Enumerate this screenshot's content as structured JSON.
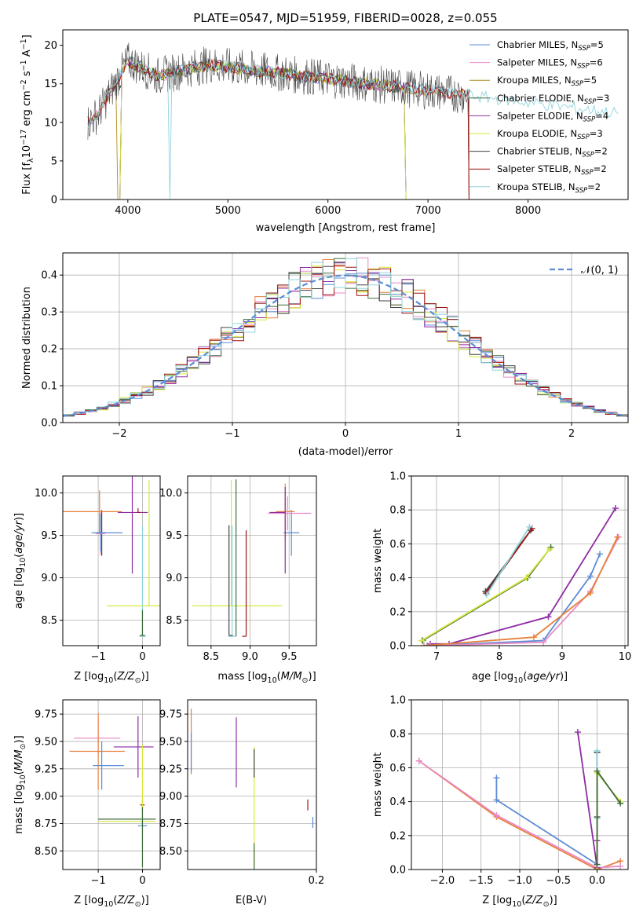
{
  "chart_data": [
    {
      "id": "spectrum",
      "type": "line",
      "title": "PLATE=0547, MJD=51959, FIBERID=0028, z=0.055",
      "xlabel": "wavelength [Angstrom, rest frame]",
      "ylabel": "Flux [f_λ10^-17 erg cm^-2 s^-1 A^-1]",
      "xlim": [
        3350,
        9000
      ],
      "ylim": [
        0,
        22
      ],
      "xticks": [
        4000,
        5000,
        6000,
        7000,
        8000
      ],
      "yticks": [
        0,
        5,
        10,
        15,
        20
      ],
      "grid": false,
      "legend_position": "top-right",
      "series": [
        {
          "name": "Chabrier MILES, N_SSP=5",
          "color": "#5b8bd6",
          "xrange": [
            3600,
            7410
          ]
        },
        {
          "name": "Salpeter MILES, N_SSP=6",
          "color": "#e88bc5",
          "xrange": [
            3600,
            7410
          ]
        },
        {
          "name": "Kroupa MILES, N_SSP=5",
          "color": "#b08a1f",
          "xrange": [
            3600,
            7410
          ]
        },
        {
          "name": "Chabrier ELODIE, N_SSP=3",
          "color": "#3d6b3d",
          "xrange": [
            3900,
            6800
          ]
        },
        {
          "name": "Salpeter ELODIE, N_SSP=4",
          "color": "#8e2ba3",
          "xrange": [
            3900,
            6800
          ]
        },
        {
          "name": "Kroupa ELODIE, N_SSP=3",
          "color": "#d6e83a",
          "xrange": [
            3900,
            6800
          ]
        },
        {
          "name": "Chabrier STELIB, N_SSP=2",
          "color": "#444444",
          "xrange": [
            3600,
            7410
          ]
        },
        {
          "name": "Salpeter STELIB, N_SSP=2",
          "color": "#a01515",
          "xrange": [
            3600,
            7410
          ]
        },
        {
          "name": "Kroupa STELIB, N_SSP=2",
          "color": "#8fd4dc",
          "xrange": [
            3600,
            8900
          ]
        }
      ]
    },
    {
      "id": "residuals",
      "type": "line",
      "xlabel": "(data-model)/error",
      "ylabel": "Normed distribution",
      "xlim": [
        -2.5,
        2.5
      ],
      "ylim": [
        0,
        0.46
      ],
      "xticks": [
        -2,
        -1,
        0,
        1,
        2
      ],
      "xtick_labels": [
        "−2",
        "−1",
        "0",
        "1",
        "2"
      ],
      "yticks": [
        0.0,
        0.1,
        0.2,
        0.3,
        0.4
      ],
      "ytick_labels": [
        "0.0",
        "0.1",
        "0.2",
        "0.3",
        "0.4"
      ],
      "grid": true,
      "legend_position": "top-right",
      "legend_label": "𝒩(0, 1)",
      "reference_curve": {
        "type": "gaussian",
        "mean": 0,
        "sigma": 1,
        "color": "#5b8bd6"
      },
      "bin_width": 0.1,
      "bin_start": -2.5,
      "histogram_colors": [
        "#5b8bd6",
        "#e88bc5",
        "#e8803a",
        "#3d6b3d",
        "#8e2ba3",
        "#d6e83a",
        "#444444",
        "#a01515",
        "#8fd4dc"
      ]
    },
    {
      "id": "age-vs-Z",
      "type": "scatter",
      "xlabel": "Z [log10(Z/Z⊙)]",
      "ylabel": "age [log10(age/yr)]",
      "xlim": [
        -1.8,
        0.4
      ],
      "ylim": [
        8.2,
        10.2
      ],
      "xticks": [
        -1,
        0
      ],
      "xtick_labels": [
        "−1",
        "0"
      ],
      "yticks": [
        8.5,
        9.0,
        9.5,
        10.0
      ],
      "ytick_labels": [
        "8.5",
        "9.0",
        "9.5",
        "10.0"
      ],
      "grid": true,
      "points": [
        {
          "x": -0.92,
          "y": 9.53,
          "xerr": [
            0.12,
            0.12
          ],
          "yerr": [
            0.27,
            0.27
          ],
          "color": "#444444"
        },
        {
          "x": -0.95,
          "y": 9.52,
          "xerr": [
            0.11,
            0.11
          ],
          "yerr": [
            0.25,
            0.25
          ],
          "color": "#e88bc5"
        },
        {
          "x": -0.97,
          "y": 9.78,
          "xerr": [
            0.85,
            0.5
          ],
          "yerr": [
            0.25,
            0.25
          ],
          "color": "#e8803a"
        },
        {
          "x": -0.95,
          "y": 9.53,
          "xerr": [
            0.2,
            0.5
          ],
          "yerr": [
            0.22,
            0.22
          ],
          "color": "#5b8bd6"
        },
        {
          "x": -0.23,
          "y": 9.77,
          "xerr": [
            0.33,
            0.35
          ],
          "yerr": [
            0.72,
            0.72
          ],
          "color": "#8e2ba3"
        },
        {
          "x": -0.1,
          "y": 9.77,
          "xerr": [
            0.0,
            0.05
          ],
          "yerr": [
            0.0,
            0.05
          ],
          "color": "#a01515"
        },
        {
          "x": 0.0,
          "y": 8.31,
          "xerr": [
            0.08,
            0.08
          ],
          "yerr": [
            0.0,
            1.3
          ],
          "color": "#8fd4dc"
        },
        {
          "x": 0.0,
          "y": 8.32,
          "xerr": [
            0.06,
            0.06
          ],
          "yerr": [
            0.0,
            0.3
          ],
          "color": "#3d6b3d"
        },
        {
          "x": 0.15,
          "y": 8.67,
          "xerr": [
            0.95,
            0.35
          ],
          "yerr": [
            0.0,
            1.48
          ],
          "color": "#d6e83a"
        }
      ]
    },
    {
      "id": "age-vs-mass",
      "type": "scatter",
      "xlabel": "mass [log10(M/M⊙)]",
      "xlim": [
        8.2,
        9.85
      ],
      "ylim": [
        8.2,
        10.2
      ],
      "xticks": [
        8.5,
        9.0,
        9.5
      ],
      "xtick_labels": [
        "8.5",
        "9.0",
        "9.5"
      ],
      "yticks": [
        8.5,
        9.0,
        9.5,
        10.0
      ],
      "ytick_labels": [
        "8.5",
        "9.0",
        "9.5",
        "10.0"
      ],
      "grid": true,
      "points": [
        {
          "x": 9.53,
          "y": 9.53,
          "xerr": [
            0.1,
            0.1
          ],
          "yerr": [
            0.27,
            0.27
          ],
          "color": "#5b8bd6"
        },
        {
          "x": 9.45,
          "y": 9.78,
          "xerr": [
            0.12,
            0.12
          ],
          "yerr": [
            0.33,
            0.33
          ],
          "color": "#e8803a"
        },
        {
          "x": 9.48,
          "y": 9.76,
          "xerr": [
            0.25,
            0.3
          ],
          "yerr": [
            0.2,
            0.2
          ],
          "color": "#e88bc5"
        },
        {
          "x": 9.45,
          "y": 9.77,
          "xerr": [
            0.2,
            0.0
          ],
          "yerr": [
            0.72,
            0.3
          ],
          "color": "#8e2ba3"
        },
        {
          "x": 8.76,
          "y": 8.67,
          "xerr": [
            0.5,
            0.65
          ],
          "yerr": [
            0.0,
            1.48
          ],
          "color": "#d6e83a"
        },
        {
          "x": 8.77,
          "y": 8.31,
          "xerr": [
            0.05,
            0.05
          ],
          "yerr": [
            0.0,
            1.3
          ],
          "color": "#8fd4dc"
        },
        {
          "x": 8.73,
          "y": 8.32,
          "xerr": [
            0.0,
            0.05
          ],
          "yerr": [
            0.0,
            1.3
          ],
          "color": "#444444"
        },
        {
          "x": 8.95,
          "y": 8.31,
          "xerr": [
            0.05,
            0.0
          ],
          "yerr": [
            0.0,
            1.25
          ],
          "color": "#a01515"
        },
        {
          "x": 8.82,
          "y": 8.31,
          "xerr": [
            0.0,
            0.0
          ],
          "yerr": [
            0.0,
            1.85
          ],
          "color": "#3d6b3d"
        }
      ]
    },
    {
      "id": "weight-vs-age",
      "type": "line",
      "xlabel": "age [log10(age/yr)]",
      "ylabel": "mass weight",
      "xlim": [
        6.6,
        10.05
      ],
      "ylim": [
        0,
        1
      ],
      "xticks": [
        7,
        8,
        9,
        10
      ],
      "xtick_labels": [
        "7",
        "8",
        "9",
        "10"
      ],
      "yticks": [
        0.0,
        0.2,
        0.4,
        0.6,
        0.8,
        1.0
      ],
      "ytick_labels": [
        "0.0",
        "0.2",
        "0.4",
        "0.6",
        "0.8",
        "1.0"
      ],
      "grid": true,
      "series": [
        {
          "color": "#444444",
          "x": [
            7.78,
            8.5
          ],
          "y": [
            0.32,
            0.68
          ]
        },
        {
          "color": "#a01515",
          "x": [
            7.79,
            8.52
          ],
          "y": [
            0.31,
            0.69
          ]
        },
        {
          "color": "#8fd4dc",
          "x": [
            7.8,
            8.48
          ],
          "y": [
            0.3,
            0.7
          ]
        },
        {
          "color": "#3d6b3d",
          "x": [
            6.78,
            8.45,
            8.82
          ],
          "y": [
            0.03,
            0.4,
            0.58
          ]
        },
        {
          "color": "#d6e83a",
          "x": [
            6.76,
            8.43,
            8.8
          ],
          "y": [
            0.03,
            0.4,
            0.57
          ]
        },
        {
          "color": "#8e2ba3",
          "x": [
            6.9,
            7.2,
            8.78,
            9.85
          ],
          "y": [
            0.01,
            0.01,
            0.17,
            0.81
          ]
        },
        {
          "color": "#5b8bd6",
          "x": [
            6.85,
            8.7,
            9.45,
            9.6
          ],
          "y": [
            0.0,
            0.03,
            0.41,
            0.54
          ]
        },
        {
          "color": "#e88bc5",
          "x": [
            6.9,
            8.7,
            9.45,
            9.9
          ],
          "y": [
            0.0,
            0.02,
            0.32,
            0.64
          ]
        },
        {
          "color": "#e8803a",
          "x": [
            6.8,
            8.55,
            9.45,
            9.88
          ],
          "y": [
            0.0,
            0.05,
            0.31,
            0.64
          ]
        }
      ]
    },
    {
      "id": "mass-vs-Z",
      "type": "scatter",
      "xlabel": "Z [log10(Z/Z⊙)]",
      "ylabel": "mass [log10(M/M⊙)]",
      "xlim": [
        -1.8,
        0.4
      ],
      "ylim": [
        8.33,
        9.88
      ],
      "xticks": [
        -1,
        0
      ],
      "xtick_labels": [
        "−1",
        "0"
      ],
      "yticks": [
        8.5,
        8.75,
        9.0,
        9.25,
        9.5,
        9.75
      ],
      "ytick_labels": [
        "8.50",
        "8.75",
        "9.00",
        "9.25",
        "9.50",
        "9.75"
      ],
      "grid": true,
      "points": [
        {
          "x": -1.0,
          "y": 9.53,
          "xerr": [
            0.55,
            0.5
          ],
          "yerr": [
            0.17,
            0.17
          ],
          "color": "#e88bc5"
        },
        {
          "x": -1.0,
          "y": 9.41,
          "xerr": [
            0.65,
            0.6
          ],
          "yerr": [
            0.35,
            0.35
          ],
          "color": "#e8803a"
        },
        {
          "x": -0.92,
          "y": 9.28,
          "xerr": [
            0.2,
            0.5
          ],
          "yerr": [
            0.22,
            0.22
          ],
          "color": "#5b8bd6"
        },
        {
          "x": -0.1,
          "y": 9.45,
          "xerr": [
            0.55,
            0.35
          ],
          "yerr": [
            0.28,
            0.28
          ],
          "color": "#8e2ba3"
        },
        {
          "x": 0.0,
          "y": 8.92,
          "xerr": [
            0.05,
            0.05
          ],
          "yerr": [
            0.05,
            0.05
          ],
          "color": "#a01515"
        },
        {
          "x": 0.0,
          "y": 8.73,
          "xerr": [
            0.1,
            0.1
          ],
          "yerr": [
            0.0,
            0.05
          ],
          "color": "#5b8bd6"
        },
        {
          "x": 0.0,
          "y": 8.79,
          "xerr": [
            1.0,
            0.3
          ],
          "yerr": [
            0.0,
            0.0
          ],
          "color": "#3d6b3d"
        },
        {
          "x": 0.0,
          "y": 8.77,
          "xerr": [
            1.0,
            0.3
          ],
          "yerr": [
            0.25,
            0.7
          ],
          "color": "#d6e83a"
        },
        {
          "x": 0.0,
          "y": 8.6,
          "xerr": [
            0.0,
            0.0
          ],
          "yerr": [
            0.25,
            0.3
          ],
          "color": "#3d6b3d"
        }
      ]
    },
    {
      "id": "mass-vs-EBV",
      "type": "scatter",
      "xlabel": "E(B-V)",
      "xlim": [
        0.02,
        0.2
      ],
      "ylim": [
        8.33,
        9.88
      ],
      "xticks": [
        0.2
      ],
      "xtick_labels": [
        "0.2"
      ],
      "yticks": [
        8.5,
        8.75,
        9.0,
        9.25,
        9.5,
        9.75
      ],
      "ytick_labels": [
        "8.50",
        "8.75",
        "9.00",
        "9.25",
        "9.50",
        "9.75"
      ],
      "grid": true,
      "points": [
        {
          "x": 0.025,
          "y": 9.5,
          "xerr": [
            0.0,
            0.0
          ],
          "yerr": [
            0.3,
            0.3
          ],
          "color": "#e8803a"
        },
        {
          "x": 0.025,
          "y": 9.4,
          "xerr": [
            0.0,
            0.0
          ],
          "yerr": [
            0.18,
            0.18
          ],
          "color": "#5b8bd6"
        },
        {
          "x": 0.088,
          "y": 9.4,
          "xerr": [
            0.0,
            0.0
          ],
          "yerr": [
            0.32,
            0.32
          ],
          "color": "#8e2ba3"
        },
        {
          "x": 0.113,
          "y": 8.9,
          "xerr": [
            0.0,
            0.0
          ],
          "yerr": [
            0.55,
            0.55
          ],
          "color": "#d6e83a"
        },
        {
          "x": 0.113,
          "y": 8.45,
          "xerr": [
            0.0,
            0.0
          ],
          "yerr": [
            0.12,
            0.12
          ],
          "color": "#3d6b3d"
        },
        {
          "x": 0.113,
          "y": 9.3,
          "xerr": [
            0.0,
            0.0
          ],
          "yerr": [
            0.13,
            0.13
          ],
          "color": "#444444"
        },
        {
          "x": 0.188,
          "y": 8.92,
          "xerr": [
            0.0,
            0.0
          ],
          "yerr": [
            0.05,
            0.05
          ],
          "color": "#a01515"
        },
        {
          "x": 0.195,
          "y": 8.76,
          "xerr": [
            0.0,
            0.0
          ],
          "yerr": [
            0.05,
            0.05
          ],
          "color": "#5b8bd6"
        }
      ]
    },
    {
      "id": "weight-vs-Z",
      "type": "line",
      "xlabel": "Z [log10(Z/Z⊙)]",
      "ylabel": "mass weight",
      "xlim": [
        -2.4,
        0.4
      ],
      "ylim": [
        0,
        1
      ],
      "xticks": [
        -2.0,
        -1.5,
        -1.0,
        -0.5,
        0.0
      ],
      "xtick_labels": [
        "−2.0",
        "−1.5",
        "−1.0",
        "−0.5",
        "0.0"
      ],
      "yticks": [
        0.0,
        0.2,
        0.4,
        0.6,
        0.8,
        1.0
      ],
      "ytick_labels": [
        "0.0",
        "0.2",
        "0.4",
        "0.6",
        "0.8",
        "1.0"
      ],
      "grid": true,
      "series": [
        {
          "color": "#e8803a",
          "x": [
            -2.3,
            -1.3,
            0.0,
            0.3
          ],
          "y": [
            0.64,
            0.31,
            0.0,
            0.05
          ]
        },
        {
          "color": "#e88bc5",
          "x": [
            -2.3,
            -1.3,
            0.0,
            0.3
          ],
          "y": [
            0.64,
            0.32,
            0.01,
            0.02
          ]
        },
        {
          "color": "#5b8bd6",
          "x": [
            -1.3,
            -1.3,
            0.0,
            0.0
          ],
          "y": [
            0.54,
            0.41,
            0.03,
            0.69
          ]
        },
        {
          "color": "#8e2ba3",
          "x": [
            -0.25,
            0.0,
            0.0
          ],
          "y": [
            0.81,
            0.01,
            0.17
          ]
        },
        {
          "color": "#444444",
          "x": [
            0.0,
            0.0
          ],
          "y": [
            0.31,
            0.69
          ]
        },
        {
          "color": "#8fd4dc",
          "x": [
            0.0,
            0.0
          ],
          "y": [
            0.3,
            0.7
          ]
        },
        {
          "color": "#d6e83a",
          "x": [
            0.0,
            0.0,
            0.3
          ],
          "y": [
            0.0,
            0.57,
            0.4
          ]
        },
        {
          "color": "#3d6b3d",
          "x": [
            0.0,
            0.0,
            0.3
          ],
          "y": [
            0.03,
            0.58,
            0.39
          ]
        }
      ]
    }
  ]
}
